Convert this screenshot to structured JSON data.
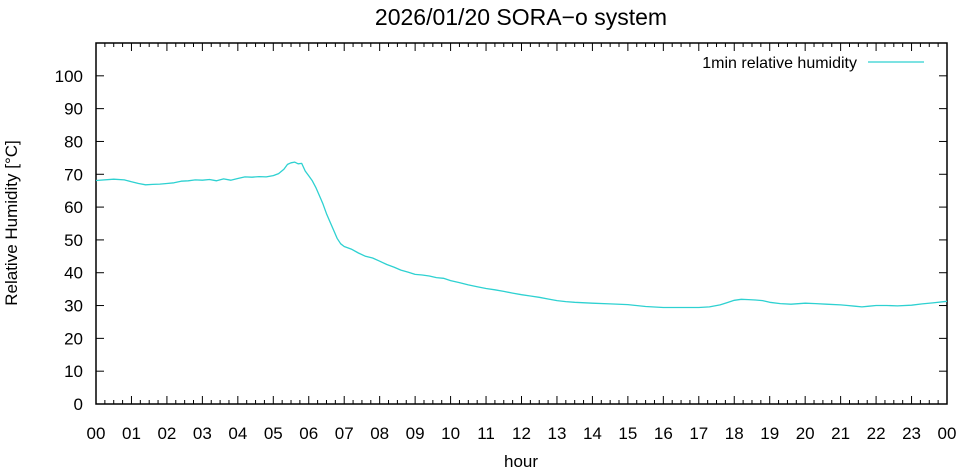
{
  "chart_data": {
    "type": "line",
    "title": "2026/01/20 SORA−o system",
    "xlabel": "hour",
    "ylabel": "Relative Humidity [°C]",
    "xlim": [
      0,
      24
    ],
    "ylim": [
      0,
      110
    ],
    "x_ticks": [
      0,
      1,
      2,
      3,
      4,
      5,
      6,
      7,
      8,
      9,
      10,
      11,
      12,
      13,
      14,
      15,
      16,
      17,
      18,
      19,
      20,
      21,
      22,
      23,
      24
    ],
    "x_tick_labels": [
      "00",
      "01",
      "02",
      "03",
      "04",
      "05",
      "06",
      "07",
      "08",
      "09",
      "10",
      "11",
      "12",
      "13",
      "14",
      "15",
      "16",
      "17",
      "18",
      "19",
      "20",
      "21",
      "22",
      "23",
      "00"
    ],
    "y_ticks": [
      0,
      10,
      20,
      30,
      40,
      50,
      60,
      70,
      80,
      90,
      100
    ],
    "y_tick_labels": [
      "0",
      "10",
      "20",
      "30",
      "40",
      "50",
      "60",
      "70",
      "80",
      "90",
      "100"
    ],
    "grid": false,
    "legend": "top-right",
    "colors": {
      "series": "#2ed1d1",
      "axis": "#000000"
    },
    "series": [
      {
        "name": "1min relative humidity",
        "x": [
          0,
          0.5,
          0.8,
          1.0,
          1.2,
          1.4,
          1.6,
          1.8,
          2.0,
          2.2,
          2.4,
          2.6,
          2.8,
          3.0,
          3.2,
          3.4,
          3.6,
          3.8,
          4.0,
          4.2,
          4.4,
          4.6,
          4.8,
          5.0,
          5.15,
          5.3,
          5.4,
          5.5,
          5.6,
          5.7,
          5.8,
          5.9,
          6.0,
          6.1,
          6.2,
          6.3,
          6.4,
          6.5,
          6.6,
          6.7,
          6.8,
          6.9,
          7.0,
          7.2,
          7.4,
          7.6,
          7.8,
          8.0,
          8.2,
          8.4,
          8.6,
          8.8,
          9.0,
          9.2,
          9.4,
          9.6,
          9.8,
          10.0,
          10.25,
          10.5,
          10.75,
          11.0,
          11.25,
          11.5,
          11.75,
          12.0,
          12.25,
          12.5,
          12.75,
          13.0,
          13.25,
          13.5,
          14.0,
          14.5,
          15.0,
          15.5,
          16.0,
          16.5,
          17.0,
          17.3,
          17.6,
          17.8,
          18.0,
          18.2,
          18.4,
          18.6,
          18.8,
          19.0,
          19.3,
          19.6,
          20.0,
          20.3,
          20.6,
          21.0,
          21.2,
          21.4,
          21.6,
          21.8,
          22.0,
          22.3,
          22.6,
          23.0,
          23.3,
          23.6,
          24.0
        ],
        "values": [
          68.1,
          68.5,
          68.3,
          67.7,
          67.2,
          66.8,
          66.9,
          67.0,
          67.2,
          67.4,
          67.9,
          68.0,
          68.3,
          68.2,
          68.4,
          68.0,
          68.6,
          68.2,
          68.7,
          69.2,
          69.1,
          69.3,
          69.2,
          69.6,
          70.2,
          71.5,
          73.0,
          73.5,
          73.7,
          73.2,
          73.3,
          71.0,
          69.5,
          68.0,
          66.0,
          63.5,
          61.0,
          58.0,
          55.5,
          53.0,
          50.5,
          48.8,
          48.0,
          47.2,
          46.0,
          45.0,
          44.5,
          43.5,
          42.5,
          41.7,
          40.8,
          40.2,
          39.5,
          39.3,
          39.0,
          38.5,
          38.3,
          37.6,
          37.0,
          36.3,
          35.7,
          35.2,
          34.8,
          34.3,
          33.8,
          33.3,
          32.9,
          32.5,
          32.0,
          31.5,
          31.2,
          31.0,
          30.7,
          30.5,
          30.3,
          29.7,
          29.4,
          29.4,
          29.4,
          29.6,
          30.2,
          30.9,
          31.6,
          31.9,
          31.8,
          31.7,
          31.5,
          31.0,
          30.6,
          30.4,
          30.7,
          30.6,
          30.4,
          30.2,
          30.0,
          29.8,
          29.6,
          29.8,
          30.0,
          30.0,
          29.9,
          30.1,
          30.5,
          30.8,
          31.3
        ]
      }
    ]
  }
}
